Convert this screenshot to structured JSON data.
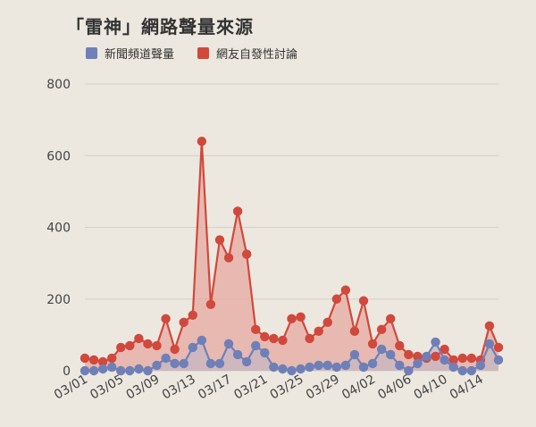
{
  "colors": {
    "background": "#ece7df",
    "news": "#6f7fb8",
    "netizen": "#d0493c",
    "netizen_fill": "#e6aaa0",
    "news_fill": "#c9b8c0",
    "grid": "#d5cfc6"
  },
  "chart_data": {
    "type": "area",
    "title": "「雷神」網路聲量來源",
    "legend_position": "top-left",
    "grid": true,
    "ylim": [
      0,
      800
    ],
    "yticks": [
      0,
      200,
      400,
      600,
      800
    ],
    "x": [
      "03/01",
      "03/02",
      "03/03",
      "03/04",
      "03/05",
      "03/06",
      "03/07",
      "03/08",
      "03/09",
      "03/10",
      "03/11",
      "03/12",
      "03/13",
      "03/14",
      "03/15",
      "03/16",
      "03/17",
      "03/18",
      "03/19",
      "03/20",
      "03/21",
      "03/22",
      "03/23",
      "03/24",
      "03/25",
      "03/26",
      "03/27",
      "03/28",
      "03/29",
      "03/30",
      "03/31",
      "04/01",
      "04/02",
      "04/03",
      "04/04",
      "04/05",
      "04/06",
      "04/07",
      "04/08",
      "04/09",
      "04/10",
      "04/11",
      "04/12",
      "04/13",
      "04/14",
      "04/15",
      "04/16"
    ],
    "xticks": [
      "03/01",
      "03/05",
      "03/09",
      "03/13",
      "03/17",
      "03/21",
      "03/25",
      "03/29",
      "04/02",
      "04/06",
      "04/10",
      "04/14"
    ],
    "series": [
      {
        "name": "新聞頻道聲量",
        "values": [
          0,
          0,
          5,
          10,
          0,
          0,
          5,
          0,
          15,
          35,
          20,
          20,
          65,
          85,
          20,
          20,
          75,
          45,
          25,
          70,
          50,
          10,
          5,
          0,
          5,
          10,
          15,
          15,
          10,
          15,
          45,
          10,
          20,
          60,
          45,
          15,
          0,
          20,
          40,
          80,
          30,
          10,
          0,
          0,
          15,
          75,
          30
        ]
      },
      {
        "name": "網友自發性討論",
        "values": [
          35,
          30,
          25,
          35,
          65,
          70,
          90,
          75,
          70,
          145,
          60,
          135,
          155,
          640,
          185,
          365,
          315,
          445,
          325,
          115,
          95,
          90,
          85,
          145,
          150,
          90,
          110,
          135,
          200,
          225,
          110,
          195,
          75,
          115,
          145,
          70,
          45,
          40,
          35,
          40,
          60,
          30,
          35,
          35,
          30,
          125,
          65
        ]
      }
    ]
  }
}
